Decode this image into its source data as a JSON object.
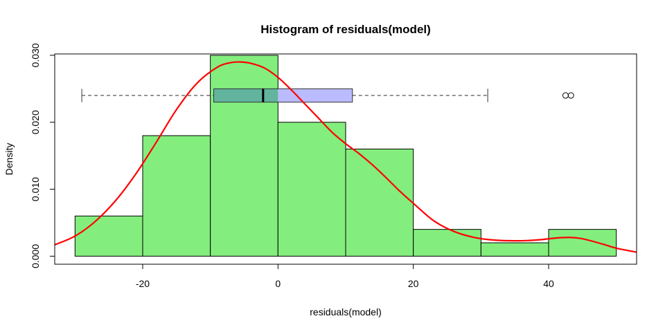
{
  "chart_data": {
    "type": "bar",
    "title": "Histogram of residuals(model)",
    "xlabel": "residuals(model)",
    "ylabel": "Density",
    "xlim": [
      -33,
      53
    ],
    "ylim": [
      -0.0012,
      0.0302
    ],
    "x_ticks": [
      -20,
      0,
      20,
      40
    ],
    "x_tick_labels": [
      "-20",
      "0",
      "20",
      "40"
    ],
    "y_ticks": [
      0.0,
      0.01,
      0.02,
      0.03
    ],
    "y_tick_labels": [
      "0.000",
      "0.010",
      "0.020",
      "0.030"
    ],
    "bins": [
      {
        "start": -30,
        "end": -20,
        "density": 0.006
      },
      {
        "start": -20,
        "end": -10,
        "density": 0.018
      },
      {
        "start": -10,
        "end": 0,
        "density": 0.03
      },
      {
        "start": 0,
        "end": 10,
        "density": 0.02
      },
      {
        "start": 10,
        "end": 20,
        "density": 0.016
      },
      {
        "start": 20,
        "end": 30,
        "density": 0.004
      },
      {
        "start": 30,
        "end": 40,
        "density": 0.002
      },
      {
        "start": 40,
        "end": 50,
        "density": 0.004
      }
    ],
    "bar_color": "#83EE7D",
    "density_curve": {
      "color": "#FF0000",
      "x": [
        -33,
        -30,
        -27,
        -24,
        -21,
        -18,
        -15,
        -12,
        -9,
        -7,
        -5.5,
        -4,
        -2,
        0,
        2,
        4,
        6,
        8,
        10,
        12,
        14,
        16,
        18,
        20,
        23,
        26,
        29,
        32,
        35,
        38,
        41,
        43,
        45,
        48,
        50,
        53
      ],
      "y": [
        0.0017,
        0.003,
        0.0052,
        0.0083,
        0.0123,
        0.017,
        0.0219,
        0.0258,
        0.0282,
        0.0289,
        0.029,
        0.0288,
        0.0281,
        0.0267,
        0.0248,
        0.0227,
        0.0206,
        0.0185,
        0.0168,
        0.0153,
        0.0136,
        0.0117,
        0.0097,
        0.0079,
        0.0053,
        0.0037,
        0.0028,
        0.0024,
        0.0023,
        0.0024,
        0.0027,
        0.0028,
        0.0026,
        0.0018,
        0.0012,
        0.0006
      ]
    },
    "boxplot": {
      "y": 0.024,
      "height": 0.002,
      "whisker_low": -29,
      "q1": -9.5,
      "median": -2.2,
      "q3": 11,
      "whisker_high": 31,
      "outliers": [
        42.5,
        43.3
      ],
      "fill": "#BBBBFF",
      "overlap_fill": "#62B49E"
    }
  }
}
